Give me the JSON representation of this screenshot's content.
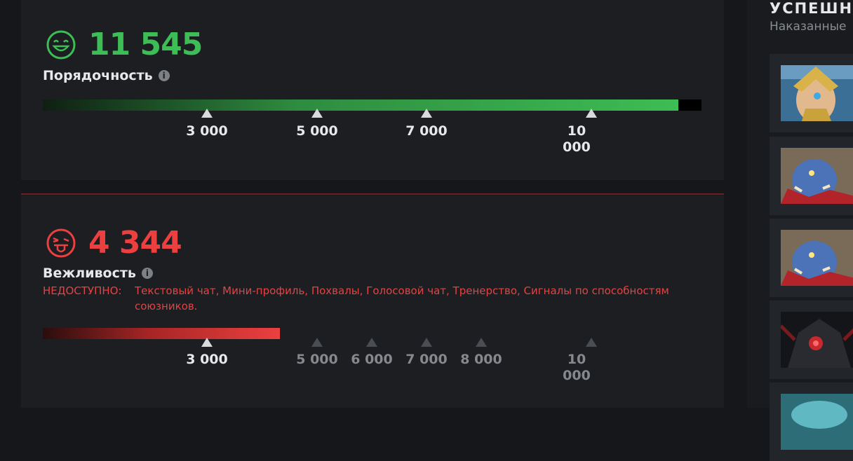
{
  "conduct": {
    "score": "11 545",
    "label": "Порядочность",
    "progress_fraction": 0.965,
    "color": "#3dbd55",
    "ticks": [
      "3 000",
      "5 000",
      "7 000",
      "10\n000"
    ]
  },
  "behavior": {
    "score": "4 344",
    "label": "Вежливость",
    "progress_fraction": 0.36,
    "color": "#ec4040",
    "unavailable_label": "НЕДОСТУПНО:",
    "unavailable_list": "Текстовый чат, Мини-профиль, Похвалы, Голосовой чат, Тренерство, Сигналы по способностям союзников.",
    "ticks": [
      "3 000",
      "5 000",
      "6 000",
      "7 000",
      "8 000",
      "10\n000"
    ]
  },
  "sidebar": {
    "title": "УСПЕШНЫ",
    "subtitle": "Наказанные",
    "heroes": [
      "hero-portrait-omniknight",
      "hero-portrait-ogre-magi",
      "hero-portrait-ogre-magi",
      "hero-portrait-shadow-fiend",
      "hero-portrait-unknown"
    ]
  },
  "info_glyph": "i"
}
